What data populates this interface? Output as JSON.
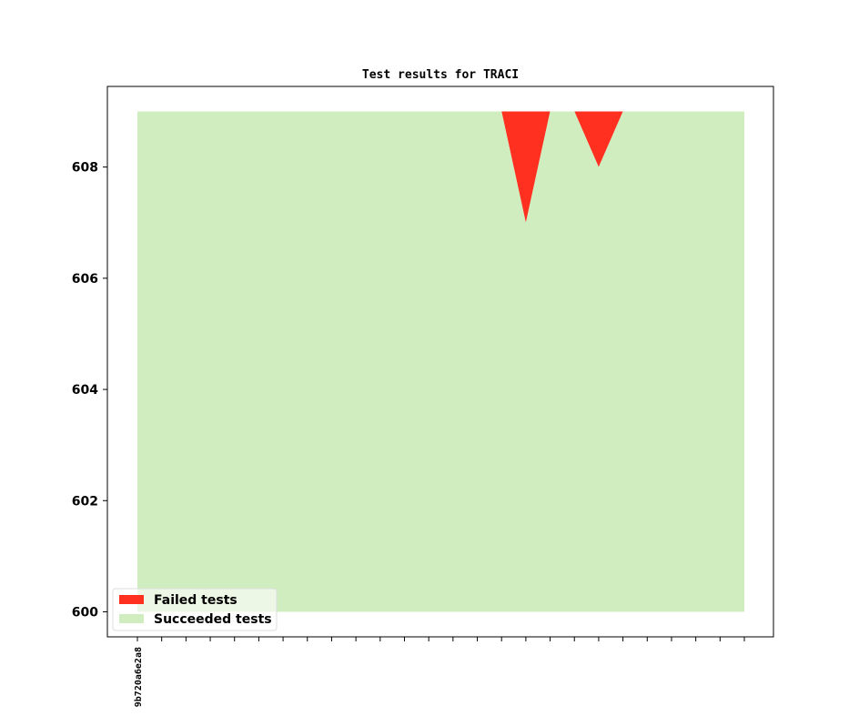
{
  "chart_data": {
    "type": "area",
    "title": "Test results for TRACI",
    "xlabel": "",
    "ylabel": "",
    "x": [
      "9b720a6e2a8",
      "",
      "",
      "",
      "",
      "",
      "",
      "",
      "",
      "",
      "",
      "",
      "",
      "",
      "",
      "",
      "",
      "",
      "",
      "",
      "",
      "",
      "",
      "",
      "",
      ""
    ],
    "series": [
      {
        "name": "Failed tests",
        "color": "#ff3020",
        "values": [
          609,
          609,
          609,
          609,
          609,
          609,
          609,
          609,
          609,
          609,
          609,
          609,
          609,
          609,
          609,
          609,
          607,
          609,
          609,
          608,
          609,
          609,
          609,
          609,
          609,
          609
        ]
      },
      {
        "name": "Succeeded tests",
        "color": "#cfedbf",
        "values": [
          609,
          609,
          609,
          609,
          609,
          609,
          609,
          609,
          609,
          609,
          609,
          609,
          609,
          609,
          609,
          609,
          607,
          609,
          609,
          608,
          609,
          609,
          609,
          609,
          609,
          609
        ]
      }
    ],
    "baseline": 600,
    "total": 609,
    "ylim": [
      599.55,
      609.45
    ],
    "yticks": [
      600,
      602,
      604,
      606,
      608
    ],
    "grid": false,
    "legend_position": "lower-left"
  }
}
